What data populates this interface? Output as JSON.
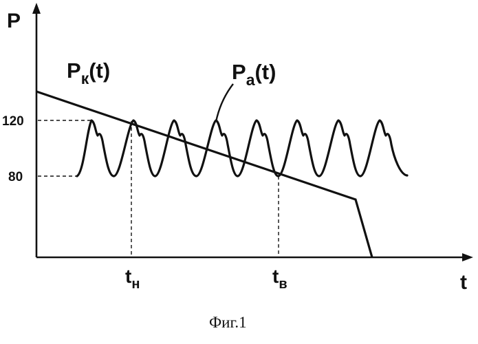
{
  "axes": {
    "y_label": "P",
    "x_label": "t"
  },
  "curves": {
    "pk": {
      "label_main": "P",
      "label_sub": "к",
      "label_arg": "(t)"
    },
    "pa": {
      "label_main": "P",
      "label_sub": "a",
      "label_arg": "(t)"
    }
  },
  "levels": {
    "upper": "120",
    "lower": "80"
  },
  "time_marks": {
    "start": {
      "main": "t",
      "sub": "н"
    },
    "end": {
      "main": "t",
      "sub": "в"
    }
  },
  "caption": "Фиг.1",
  "colors": {
    "ink": "#111111",
    "background": "#ffffff"
  }
}
